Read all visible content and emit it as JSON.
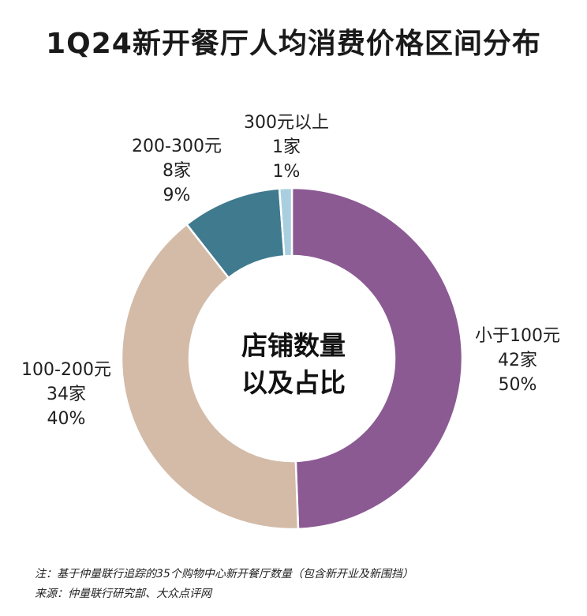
{
  "title": "1Q24新开餐厅人均消费价格区间分布",
  "chart_data": {
    "type": "pie",
    "donut": true,
    "center_label": [
      "店铺数量",
      "以及占比"
    ],
    "slices": [
      {
        "category": "小于100元",
        "count_label": "42家",
        "pct_label": "50%",
        "count": 42,
        "color": "#8b5a93"
      },
      {
        "category": "100-200元",
        "count_label": "34家",
        "pct_label": "40%",
        "count": 34,
        "color": "#d3bba8"
      },
      {
        "category": "200-300元",
        "count_label": "8家",
        "pct_label": "9%",
        "count": 8,
        "color": "#3f7a8e"
      },
      {
        "category": "300元以上",
        "count_label": "1家",
        "pct_label": "1%",
        "count": 1,
        "color": "#a9cfdf"
      }
    ]
  },
  "notes": {
    "note": "注：基于仲量联行追踪的35个购物中心新开餐厅数量（包含新开业及新围挡）",
    "source": "来源：仲量联行研究部、大众点评网"
  }
}
